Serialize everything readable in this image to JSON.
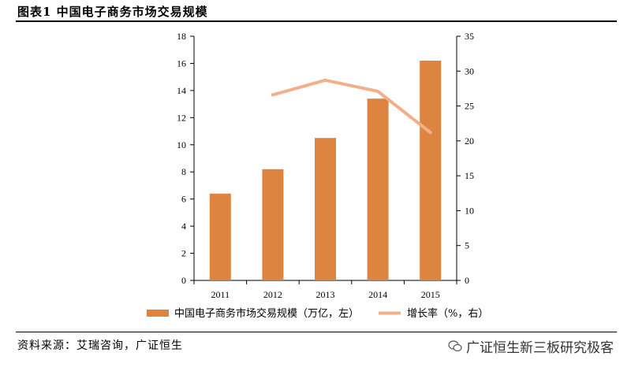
{
  "header": {
    "title": "图表1  中国电子商务市场交易规模"
  },
  "footer": {
    "source": "资料来源：艾瑞咨询，广证恒生",
    "watermark": "广证恒生新三板研究极客"
  },
  "colors": {
    "bar": "#dd8540",
    "line": "#f2b08a"
  },
  "chart_data": {
    "type": "bar",
    "categories": [
      "2011",
      "2012",
      "2013",
      "2014",
      "2015"
    ],
    "series": [
      {
        "name": "中国电子商务市场交易规模（万亿，左）",
        "type": "bar",
        "axis": "left",
        "values": [
          6.4,
          8.2,
          10.5,
          13.4,
          16.2
        ]
      },
      {
        "name": "增长率（%，右）",
        "type": "line",
        "axis": "right",
        "values": [
          null,
          26.6,
          28.7,
          27.1,
          21.2
        ]
      }
    ],
    "ylim_left": [
      0,
      18
    ],
    "yticks_left": [
      0,
      2,
      4,
      6,
      8,
      10,
      12,
      14,
      16,
      18
    ],
    "ylim_right": [
      0,
      35
    ],
    "yticks_right": [
      0,
      5,
      10,
      15,
      20,
      25,
      30,
      35
    ],
    "grid": false,
    "legend_position": "bottom"
  }
}
